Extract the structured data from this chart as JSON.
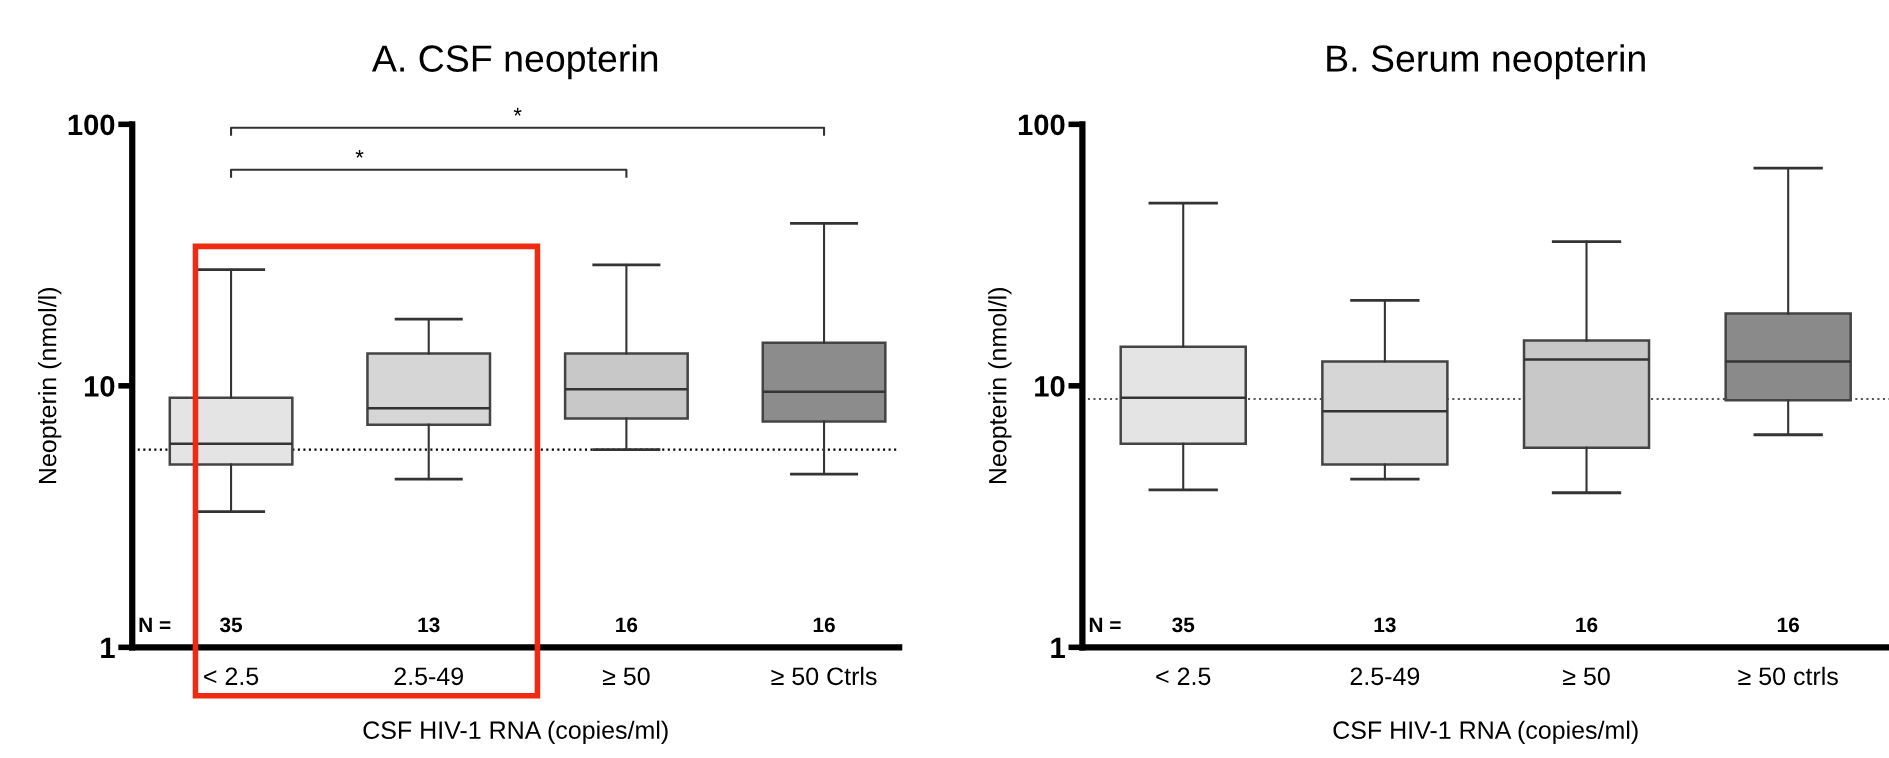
{
  "chart_data": [
    {
      "type": "box",
      "title": "A. CSF neopterin",
      "xlabel": "CSF HIV-1 RNA (copies/ml)",
      "ylabel": "Neopterin (nmol/l)",
      "categories": [
        "< 2.5",
        "2.5-49",
        "≥ 50",
        "≥ 50 Ctrls"
      ],
      "colors": [
        "#e4e4e4",
        "#d6d6d6",
        "#c8c8c8",
        "#8c8c8c"
      ],
      "boxes": [
        {
          "low": 3.3,
          "q1": 5.0,
          "median": 6.0,
          "q3": 9.0,
          "high": 27.8
        },
        {
          "low": 4.4,
          "q1": 7.1,
          "median": 8.2,
          "q3": 13.3,
          "high": 18
        },
        {
          "low": 5.7,
          "q1": 7.5,
          "median": 9.7,
          "q3": 13.3,
          "high": 29
        },
        {
          "low": 4.6,
          "q1": 7.3,
          "median": 9.5,
          "q3": 14.6,
          "high": 41.8
        }
      ],
      "log": "y",
      "ylim": [
        1,
        100
      ],
      "yticks": [
        1,
        10,
        100
      ],
      "grid": false,
      "ref_lines": [
        {
          "axis": "y",
          "value": 5.7,
          "line_style": "dotted",
          "color": "#000000"
        }
      ],
      "annotations": [
        "*",
        "*",
        "N =",
        "35",
        "13",
        "16",
        "16"
      ]
    },
    {
      "type": "box",
      "title": "B. Serum neopterin",
      "xlabel": "CSF HIV-1 RNA (copies/ml)",
      "ylabel": "Neopterin (nmol/l)",
      "categories": [
        "< 2.5",
        "2.5-49",
        "≥ 50",
        "≥ 50 ctrls"
      ],
      "colors": [
        "#e4e4e4",
        "#d6d6d6",
        "#c8c8c8",
        "#8a8a8a"
      ],
      "boxes": [
        {
          "low": 4.0,
          "q1": 6.0,
          "median": 9.0,
          "q3": 14.1,
          "high": 50
        },
        {
          "low": 4.4,
          "q1": 5.0,
          "median": 8.0,
          "q3": 12.4,
          "high": 21.2
        },
        {
          "low": 3.9,
          "q1": 5.8,
          "median": 12.6,
          "q3": 14.9,
          "high": 35.6
        },
        {
          "low": 6.5,
          "q1": 8.8,
          "median": 12.4,
          "q3": 18.9,
          "high": 68
        }
      ],
      "log": "y",
      "ylim": [
        1,
        100
      ],
      "yticks": [
        1,
        10,
        100
      ],
      "grid": false,
      "ref_lines": [
        {
          "axis": "y",
          "value": 8.9,
          "line_style": "dotted",
          "color": "#555555"
        }
      ],
      "annotations": [
        "N =",
        "35",
        "13",
        "16",
        "16"
      ]
    }
  ]
}
